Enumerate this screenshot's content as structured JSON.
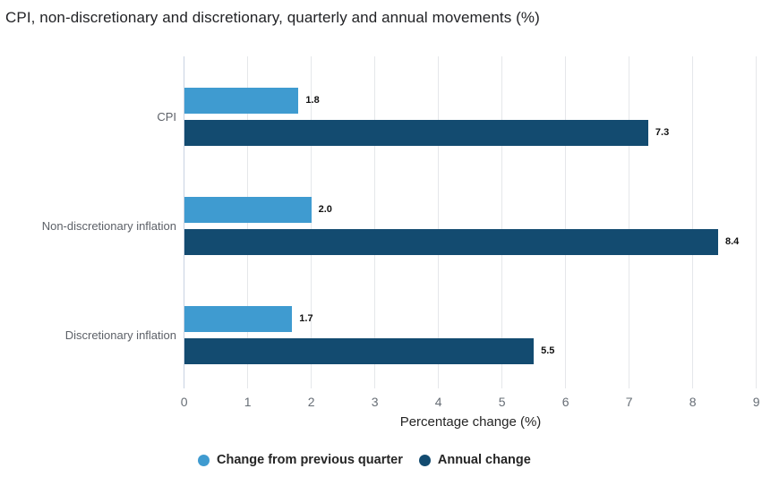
{
  "chart_data": {
    "type": "bar",
    "orientation": "horizontal",
    "title": "CPI, non-discretionary and discretionary, quarterly and annual movements (%)",
    "categories": [
      "CPI",
      "Non-discretionary inflation",
      "Discretionary inflation"
    ],
    "series": [
      {
        "name": "Change from previous quarter",
        "color": "#3F9BD0",
        "values": [
          1.8,
          2.0,
          1.7
        ]
      },
      {
        "name": "Annual change",
        "color": "#134B70",
        "values": [
          7.3,
          8.4,
          5.5
        ]
      }
    ],
    "xlabel": "Percentage change (%)",
    "xlim": [
      0,
      9
    ],
    "x_ticks": [
      0,
      1,
      2,
      3,
      4,
      5,
      6,
      7,
      8,
      9
    ],
    "value_format_decimals": 1,
    "grid": true,
    "legend_position": "bottom",
    "colors": {
      "background": "#ffffff",
      "title_text": "#222326",
      "gridline": "#e5e7ea",
      "zero_line": "#c9d3e2",
      "tick_label": "#666d75",
      "category_label": "#5d6168",
      "data_label": "#111111",
      "axis_title_text": "#252525",
      "legend_text": "#252525"
    }
  }
}
